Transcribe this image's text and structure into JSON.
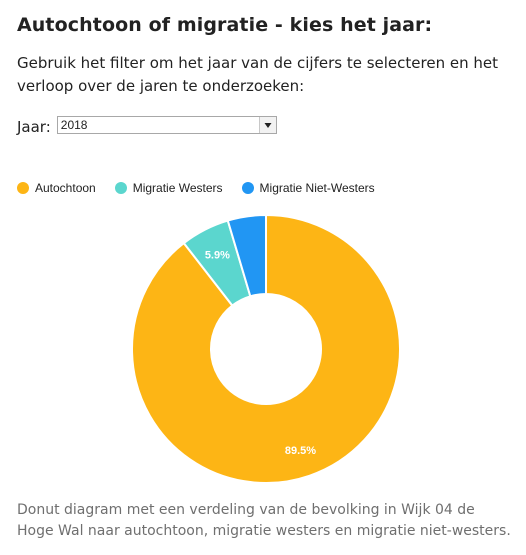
{
  "title": "Autochtoon of migratie - kies het jaar:",
  "intro": "Gebruik het filter om het jaar van de cijfers te selecteren en het verloop over de jaren te onderzoeken:",
  "filter": {
    "label": "Jaar:",
    "selected": "2018"
  },
  "caption": "Donut diagram met een verdeling van de bevolking in Wijk 04 de Hoge Wal naar autochtoon, migratie westers en migratie niet-westers.",
  "chart_data": {
    "type": "pie",
    "variant": "donut",
    "categories": [
      "Autochtoon",
      "Migratie Westers",
      "Migratie Niet-Westers"
    ],
    "values": [
      89.5,
      5.9,
      4.6
    ],
    "value_unit": "%",
    "data_labels": [
      "89.5%",
      "5.9%",
      ""
    ],
    "colors": [
      "#FDB515",
      "#5BD6CE",
      "#2196F3"
    ],
    "legend_position": "top-left",
    "start_angle": "top",
    "direction": "clockwise"
  }
}
